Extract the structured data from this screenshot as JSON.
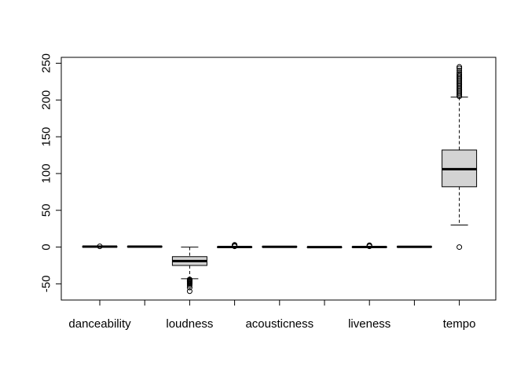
{
  "chart_data": {
    "type": "boxplot",
    "title": "",
    "xlabel": "",
    "ylabel": "",
    "ylim": [
      -72,
      258
    ],
    "y_ticks": [
      -50,
      0,
      50,
      100,
      150,
      200,
      250
    ],
    "y_tick_labels": [
      "-50",
      "0",
      "50",
      "100",
      "150",
      "200",
      "250"
    ],
    "grid": false,
    "legend": "none",
    "box_fill": "#d3d3d3",
    "categories": [
      "danceability",
      "",
      "loudness",
      "",
      "acousticness",
      "",
      "liveness",
      "",
      "tempo"
    ],
    "tick_labels": [
      "danceability",
      "",
      "loudness",
      "",
      "acousticness",
      "",
      "liveness",
      "",
      "tempo"
    ],
    "boxes": [
      {
        "min": 0.1,
        "q1": 0.5,
        "median": 0.6,
        "q3": 0.7,
        "max": 1.0,
        "outliers": [
          1.0
        ]
      },
      {
        "min": 0,
        "q1": 0.4,
        "median": 0.6,
        "q3": 0.8,
        "max": 1.0,
        "outliers": []
      },
      {
        "min": -43,
        "q1": -25,
        "median": -19,
        "q3": -13,
        "max": 0,
        "outliers": [
          -44,
          -45,
          -46,
          -47,
          -48,
          -49,
          -50,
          -52,
          -55,
          -60
        ]
      },
      {
        "min": 0,
        "q1": 0,
        "median": 0.05,
        "q3": 0.2,
        "max": 0.5,
        "outliers": [
          1,
          1.5,
          2,
          2.5,
          3
        ]
      },
      {
        "min": 0,
        "q1": 0.1,
        "median": 0.3,
        "q3": 0.7,
        "max": 1.0,
        "outliers": []
      },
      {
        "min": 0,
        "q1": 0,
        "median": 0,
        "q3": 0.1,
        "max": 0.3,
        "outliers": []
      },
      {
        "min": 0,
        "q1": 0.1,
        "median": 0.15,
        "q3": 0.3,
        "max": 0.6,
        "outliers": [
          1,
          1.5,
          2,
          2.5
        ]
      },
      {
        "min": 0,
        "q1": 0.2,
        "median": 0.4,
        "q3": 0.6,
        "max": 1.0,
        "outliers": []
      },
      {
        "min": 30,
        "q1": 82,
        "median": 106,
        "q3": 132,
        "max": 204,
        "outliers": [
          0,
          205,
          207,
          209,
          211,
          213,
          215,
          217,
          219,
          221,
          223,
          225,
          227,
          229,
          231,
          233,
          235,
          237,
          240,
          243,
          245
        ]
      }
    ]
  }
}
